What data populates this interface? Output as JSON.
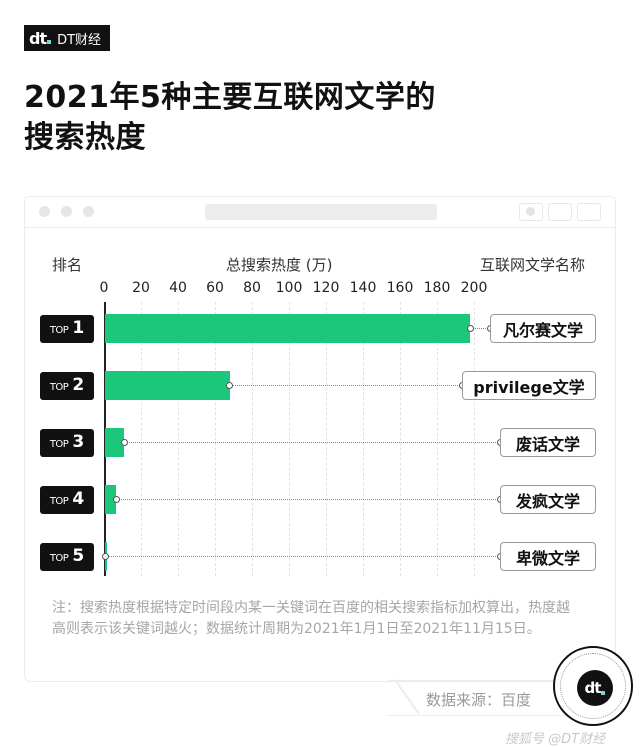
{
  "brand": {
    "logo": "dt",
    "name": "DT财经"
  },
  "title": {
    "line1": "2021年5种主要互联网文学的",
    "line2": "搜索热度"
  },
  "headers": {
    "rank": "排名",
    "metric": "总搜索热度 (万)",
    "name": "互联网文学名称"
  },
  "axis_ticks": [
    "0",
    "20",
    "40",
    "60",
    "80",
    "100",
    "120",
    "140",
    "160",
    "180",
    "200"
  ],
  "rows": [
    {
      "rank_prefix": "TOP",
      "rank_num": "1",
      "name": "凡尔赛文学",
      "value": 198
    },
    {
      "rank_prefix": "TOP",
      "rank_num": "2",
      "name": "privilege文学",
      "value": 68
    },
    {
      "rank_prefix": "TOP",
      "rank_num": "3",
      "name": "废话文学",
      "value": 11
    },
    {
      "rank_prefix": "TOP",
      "rank_num": "4",
      "name": "发疯文学",
      "value": 6.5
    },
    {
      "rank_prefix": "TOP",
      "rank_num": "5",
      "name": "卑微文学",
      "value": 1
    }
  ],
  "note": "注：搜索热度根据特定时间段内某一关键词在百度的相关搜索指标加权算出，热度越高则表示该关键词越火；数据统计周期为2021年1月1日至2021年11月15日。",
  "source": "数据来源：百度",
  "footer_mark": "搜狐号 @DT财经",
  "colors": {
    "bar": "#1cc67a",
    "rank_bg": "#111111",
    "accent_dot": "#7fd3d9"
  },
  "chart_data": {
    "type": "bar",
    "orientation": "horizontal",
    "title": "2021年5种主要互联网文学的搜索热度",
    "xlabel": "总搜索热度 (万)",
    "ylabel": "排名",
    "categories": [
      "凡尔赛文学",
      "privilege文学",
      "废话文学",
      "发疯文学",
      "卑微文学"
    ],
    "values": [
      198,
      68,
      11,
      6.5,
      1
    ],
    "xlim": [
      0,
      200
    ],
    "x_ticks": [
      0,
      20,
      40,
      60,
      80,
      100,
      120,
      140,
      160,
      180,
      200
    ],
    "grid": true,
    "legend": null,
    "source": "百度"
  }
}
